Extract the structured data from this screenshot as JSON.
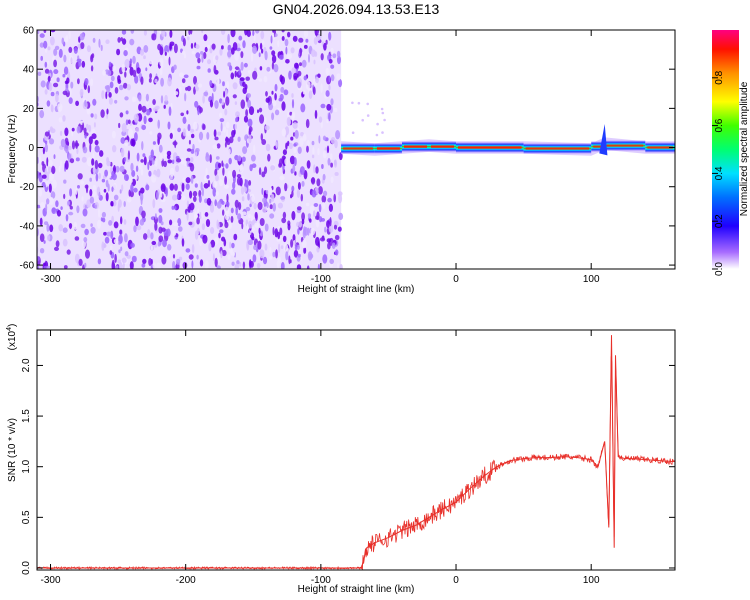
{
  "title": "GN04.2026.094.13.53.E13",
  "chart_data": [
    {
      "type": "heatmap",
      "xlabel": "Height of straight line (km)",
      "ylabel": "Frequency (Hz)",
      "xlim": [
        -310,
        162
      ],
      "ylim": [
        -62,
        60
      ],
      "xticks": [
        -300,
        -200,
        -100,
        0,
        100
      ],
      "yticks": [
        -60,
        -40,
        -20,
        0,
        20,
        40,
        60
      ],
      "colorbar": {
        "label": "Normalized spectral amplitude",
        "range": [
          0,
          1
        ],
        "ticks": [
          0.0,
          0.2,
          0.4,
          0.6,
          0.8
        ]
      },
      "noise_region": {
        "x_range": [
          -310,
          -85
        ],
        "freq_range": [
          -62,
          60
        ],
        "amplitude_range": [
          0.0,
          0.2
        ]
      },
      "band": [
        {
          "x": -85,
          "freq": 0,
          "amplitude": 0.5
        },
        {
          "x": -60,
          "freq": -1,
          "amplitude": 0.9
        },
        {
          "x": -40,
          "freq": 0,
          "amplitude": 0.9
        },
        {
          "x": -20,
          "freq": 1,
          "amplitude": 0.85
        },
        {
          "x": 0,
          "freq": 0,
          "amplitude": 0.95
        },
        {
          "x": 50,
          "freq": 0,
          "amplitude": 0.95
        },
        {
          "x": 100,
          "freq": -1,
          "amplitude": 0.6
        },
        {
          "x": 110,
          "freq": 2,
          "amplitude": 0.4
        },
        {
          "x": 140,
          "freq": 0,
          "amplitude": 0.95
        },
        {
          "x": 162,
          "freq": 0,
          "amplitude": 0.6
        }
      ],
      "color": "#7b00e0"
    },
    {
      "type": "line",
      "xlabel": "Height of straight line (km)",
      "ylabel": "SNR (10 * v/v)",
      "yscale_label": "(x10",
      "yscale_exp": "4",
      "xlim": [
        -310,
        162
      ],
      "ylim": [
        -0.02,
        2.35
      ],
      "xticks": [
        -300,
        -200,
        -100,
        0,
        100
      ],
      "yticks": [
        0.0,
        0.5,
        1.0,
        1.5,
        2.0
      ],
      "series": [
        {
          "color": "#e8302a",
          "x": [
            -310,
            -100,
            -70,
            -66,
            -60,
            -50,
            -40,
            -30,
            -20,
            -10,
            0,
            10,
            20,
            30,
            40,
            50,
            60,
            70,
            80,
            90,
            100,
            105,
            110,
            113,
            115,
            117,
            118,
            120,
            125,
            130,
            140,
            150,
            162
          ],
          "y": [
            0.0,
            0.0,
            0.0,
            0.2,
            0.25,
            0.3,
            0.37,
            0.42,
            0.5,
            0.58,
            0.65,
            0.78,
            0.9,
            1.0,
            1.06,
            1.08,
            1.09,
            1.09,
            1.1,
            1.09,
            1.07,
            1.0,
            1.25,
            0.4,
            2.3,
            0.2,
            2.1,
            1.1,
            1.08,
            1.08,
            1.07,
            1.06,
            1.05
          ]
        }
      ]
    }
  ]
}
